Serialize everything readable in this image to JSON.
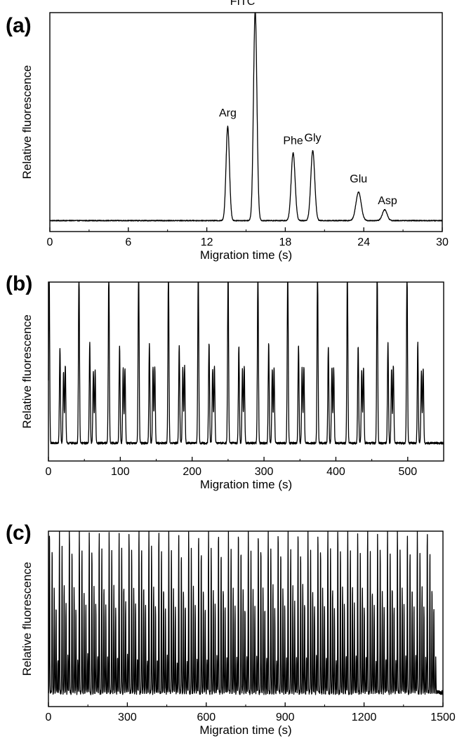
{
  "chart_data": [
    {
      "panel": "(a)",
      "type": "line",
      "xlabel": "Migration time (s)",
      "ylabel": "Relative fluorescence",
      "xlim": [
        0,
        30
      ],
      "xticks": [
        "0",
        "6",
        "12",
        "18",
        "24",
        "30"
      ],
      "yticks_shown": false,
      "baseline": 0.05,
      "noise": 0.002,
      "peaks": [
        {
          "label": "Arg",
          "x": 13.6,
          "height": 0.43,
          "width": 0.13
        },
        {
          "label": "FITC",
          "x": 15.7,
          "height": 0.96,
          "width": 0.13
        },
        {
          "label": "Phe",
          "x": 18.6,
          "height": 0.31,
          "width": 0.15
        },
        {
          "label": "Gly",
          "x": 20.1,
          "height": 0.32,
          "width": 0.15
        },
        {
          "label": "Glu",
          "x": 23.6,
          "height": 0.13,
          "width": 0.2
        },
        {
          "label": "Asp",
          "x": 25.6,
          "height": 0.05,
          "width": 0.18
        }
      ],
      "grid": false,
      "legend": "none"
    },
    {
      "panel": "(b)",
      "type": "line",
      "xlabel": "Migration time (s)",
      "ylabel": "Relative fluorescence",
      "xlim": [
        0,
        550
      ],
      "xticks": [
        "0",
        "100",
        "200",
        "300",
        "400",
        "500"
      ],
      "yticks_shown": false,
      "baseline": 0.1,
      "noise": 0.006,
      "first_injection_time": 1,
      "injection_period": 41.5,
      "injection_count": 13,
      "peak_pattern": [
        {
          "offset": 0,
          "height": 0.98
        },
        {
          "offset": 15,
          "height": 0.55
        },
        {
          "offset": 20,
          "height": 0.41
        },
        {
          "offset": 22.5,
          "height": 0.42
        }
      ],
      "peak_width": 0.7,
      "grid": false,
      "legend": "none"
    },
    {
      "panel": "(c)",
      "type": "line",
      "xlabel": "Migration time (s)",
      "ylabel": "Relative fluorescence",
      "xlim": [
        0,
        1500
      ],
      "xticks": [
        "0",
        "300",
        "600",
        "900",
        "1200",
        "1500"
      ],
      "yticks_shown": false,
      "baseline": 0.08,
      "noise": 0.012,
      "first_injection_time": 4,
      "injection_period": 37.8,
      "injection_count": 39,
      "peak_pattern": [
        {
          "offset": 0,
          "height": 0.93
        },
        {
          "offset": 10,
          "height": 0.82
        },
        {
          "offset": 18,
          "height": 0.6
        },
        {
          "offset": 25,
          "height": 0.5
        },
        {
          "offset": 32,
          "height": 0.2
        }
      ],
      "peak_width": 0.9,
      "grid": false,
      "legend": "none"
    }
  ]
}
